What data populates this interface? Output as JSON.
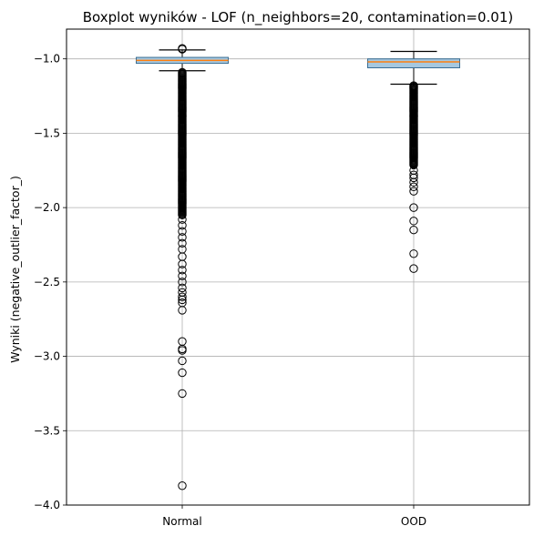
{
  "chart_data": {
    "type": "boxplot",
    "title": "Boxplot wyników - LOF (n_neighbors=20, contamination=0.01)",
    "xlabel": "",
    "ylabel": "Wyniki (negative_outlier_factor_)",
    "categories": [
      "Normal",
      "OOD"
    ],
    "ylim": [
      -4.0,
      -0.8
    ],
    "yticks": [
      -1.0,
      -1.5,
      -2.0,
      -2.5,
      -3.0,
      -3.5,
      -4.0
    ],
    "ytick_labels": [
      "−1.0",
      "−1.5",
      "−2.0",
      "−2.5",
      "−3.0",
      "−3.5",
      "−4.0"
    ],
    "grid": true,
    "boxes": [
      {
        "name": "Normal",
        "whisker_high": -0.94,
        "q3": -0.99,
        "median": -1.01,
        "q1": -1.03,
        "whisker_low": -1.08,
        "outliers_high": [
          -0.93,
          -0.935
        ],
        "outlier_band": [
          -1.09,
          -2.05
        ],
        "outliers_low": [
          -2.08,
          -2.12,
          -2.16,
          -2.2,
          -2.24,
          -2.28,
          -2.33,
          -2.38,
          -2.42,
          -2.46,
          -2.5,
          -2.54,
          -2.57,
          -2.6,
          -2.62,
          -2.64,
          -2.69,
          -2.9,
          -2.95,
          -2.96,
          -3.03,
          -3.11,
          -3.25,
          -3.87
        ]
      },
      {
        "name": "OOD",
        "whisker_high": -0.95,
        "q3": -1.0,
        "median": -1.02,
        "q1": -1.06,
        "whisker_low": -1.17,
        "outliers_high": [],
        "outlier_band": [
          -1.18,
          -1.72
        ],
        "outliers_low": [
          -1.75,
          -1.78,
          -1.8,
          -1.83,
          -1.86,
          -1.89,
          -2.0,
          -2.09,
          -2.15,
          -2.31,
          -2.41
        ]
      }
    ],
    "colors": {
      "box_fill": "#a6c8e0",
      "box_edge": "#3b6e93",
      "median": "#ff7f0e",
      "grid": "#b0b0b0"
    }
  }
}
